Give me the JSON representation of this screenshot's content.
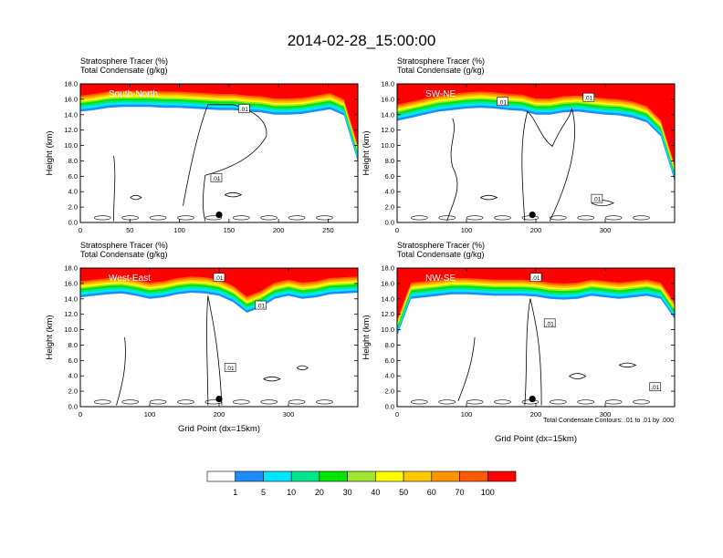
{
  "title": "2014-02-28_15:00:00",
  "contour_note": "Total Condensate Contours: .01 to .01 by .000",
  "colorbar": {
    "colors": [
      "#ffffff",
      "#1e8cff",
      "#00e6ff",
      "#00e68c",
      "#00e600",
      "#a0e632",
      "#ffff00",
      "#ffc800",
      "#ff9600",
      "#ff5a00",
      "#ff0000"
    ],
    "labels": [
      "1",
      "5",
      "10",
      "20",
      "30",
      "40",
      "50",
      "60",
      "70",
      "100"
    ]
  },
  "chart_data": [
    {
      "type": "heatmap",
      "direction": "South-North",
      "title_line1": "Stratosphere Tracer   (%)",
      "title_line2": "Total Condensate   (g/kg)",
      "ylabel": "Height (km)",
      "xlabel": "",
      "xlim": [
        0,
        280
      ],
      "ylim": [
        0,
        18
      ],
      "xticks": [
        "0",
        "50",
        "100",
        "150",
        "200",
        "250"
      ],
      "yticks": [
        "0.0",
        "2.0",
        "4.0",
        "6.0",
        "8.0",
        "10.0",
        "12.0",
        "14.0",
        "16.0",
        "18.0"
      ],
      "tracer_bottom_km": [
        15.0,
        15.2,
        15.5,
        15.6,
        15.6,
        15.6,
        15.5,
        15.5,
        15.4,
        15.3,
        15.2,
        15.2,
        15.0,
        14.9,
        14.6,
        14.6,
        14.7,
        15.0,
        15.3,
        14.5,
        8.5
      ],
      "contour_labels": [
        ".01",
        ".01"
      ],
      "marker": {
        "x": 140,
        "y": 1.0
      }
    },
    {
      "type": "heatmap",
      "direction": "SW-NE",
      "title_line1": "Stratosphere Tracer   (%)",
      "title_line2": "Total Condensate   (g/kg)",
      "ylabel": "Height (km)",
      "xlabel": "",
      "xlim": [
        0,
        400
      ],
      "ylim": [
        0,
        18
      ],
      "xticks": [
        "0",
        "100",
        "200",
        "300"
      ],
      "yticks": [
        "0.0",
        "2.0",
        "4.0",
        "6.0",
        "8.0",
        "10.0",
        "12.0",
        "14.0",
        "16.0",
        "18.0"
      ],
      "tracer_bottom_km": [
        13.8,
        14.2,
        14.6,
        15.0,
        15.2,
        15.4,
        15.5,
        15.4,
        15.2,
        15.1,
        14.6,
        14.6,
        14.9,
        15.0,
        14.8,
        14.6,
        14.5,
        14.2,
        13.6,
        11.8,
        6.0
      ],
      "contour_labels": [
        ".01",
        ".01",
        ".01"
      ],
      "marker": {
        "x": 195,
        "y": 1.0
      }
    },
    {
      "type": "heatmap",
      "direction": "West-East",
      "title_line1": "Stratosphere Tracer   (%)",
      "title_line2": "Total Condensate   (g/kg)",
      "ylabel": "Height (km)",
      "xlabel": "Grid Point (dx=15km)",
      "xlim": [
        0,
        400
      ],
      "ylim": [
        0,
        18
      ],
      "xticks": [
        "0",
        "100",
        "200",
        "300"
      ],
      "yticks": [
        "0.0",
        "2.0",
        "4.0",
        "6.0",
        "8.0",
        "10.0",
        "12.0",
        "14.0",
        "16.0",
        "18.0"
      ],
      "tracer_bottom_km": [
        14.8,
        15.0,
        15.2,
        15.3,
        15.0,
        14.6,
        14.8,
        15.2,
        15.4,
        15.3,
        15.0,
        14.2,
        12.8,
        13.5,
        14.6,
        15.0,
        14.6,
        14.8,
        15.2,
        15.3,
        15.4
      ],
      "contour_labels": [
        ".01",
        ".01",
        ".01"
      ],
      "marker": {
        "x": 200,
        "y": 1.0
      }
    },
    {
      "type": "heatmap",
      "direction": "NW-SE",
      "title_line1": "Stratosphere Tracer   (%)",
      "title_line2": "Total Condensate   (g/kg)",
      "ylabel": "Height (km)",
      "xlabel": "Grid Point (dx=15km)",
      "xlim": [
        0,
        400
      ],
      "ylim": [
        0,
        18
      ],
      "xticks": [
        "0",
        "100",
        "200",
        "300"
      ],
      "yticks": [
        "0.0",
        "2.0",
        "4.0",
        "6.0",
        "8.0",
        "10.0",
        "12.0",
        "14.0",
        "16.0",
        "18.0"
      ],
      "tracer_bottom_km": [
        9.8,
        14.6,
        14.8,
        15.0,
        15.2,
        15.2,
        15.1,
        15.0,
        15.0,
        15.0,
        14.9,
        14.6,
        14.5,
        14.6,
        15.0,
        14.8,
        14.6,
        14.8,
        15.0,
        14.6,
        12.0
      ],
      "contour_labels": [
        ".01",
        ".01",
        ".01"
      ],
      "marker": {
        "x": 195,
        "y": 1.0
      }
    }
  ]
}
